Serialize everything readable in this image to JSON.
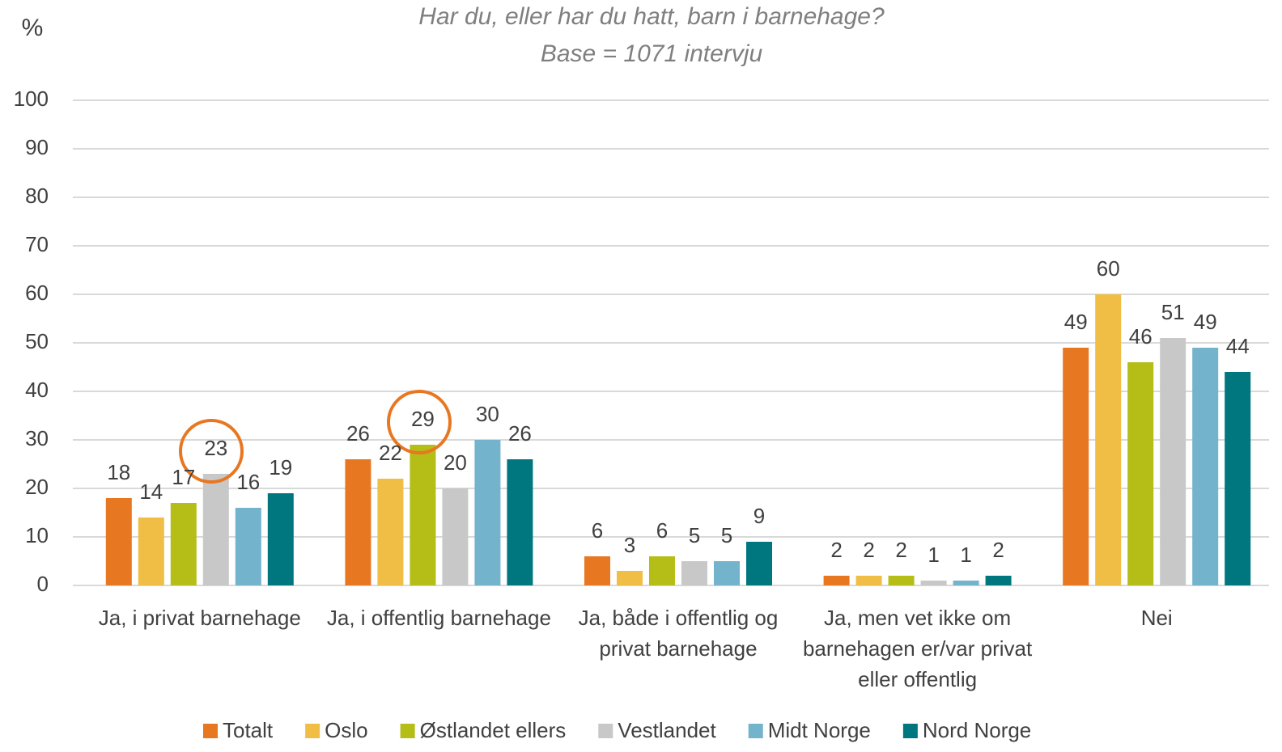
{
  "chart_data": {
    "type": "bar",
    "title": "Har du, eller har du hatt, barn i barnehage?",
    "subtitle": "Base = 1071 intervju",
    "y_label": "%",
    "categories": [
      "Ja, i privat barnehage",
      "Ja, i offentlig barnehage",
      "Ja, både i offentlig og privat barnehage",
      "Ja, men vet ikke om barnehagen er/var privat eller offentlig",
      "Nei"
    ],
    "series": [
      {
        "name": "Totalt",
        "color": "#e87722",
        "values": [
          18,
          26,
          6,
          2,
          49
        ]
      },
      {
        "name": "Oslo",
        "color": "#f0be45",
        "values": [
          14,
          22,
          3,
          2,
          60
        ]
      },
      {
        "name": "Østlandet ellers",
        "color": "#b5bd17",
        "values": [
          17,
          29,
          6,
          2,
          46
        ]
      },
      {
        "name": "Vestlandet",
        "color": "#c8c8c8",
        "values": [
          23,
          20,
          5,
          1,
          51
        ]
      },
      {
        "name": "Midt Norge",
        "color": "#74b3cc",
        "values": [
          16,
          30,
          5,
          1,
          49
        ]
      },
      {
        "name": "Nord Norge",
        "color": "#00777f",
        "values": [
          19,
          26,
          9,
          2,
          44
        ]
      }
    ],
    "ylim": [
      0,
      100
    ],
    "yticks": [
      0,
      10,
      20,
      30,
      40,
      50,
      60,
      70,
      80,
      90,
      100
    ],
    "grid": true,
    "legend": "bottom"
  }
}
